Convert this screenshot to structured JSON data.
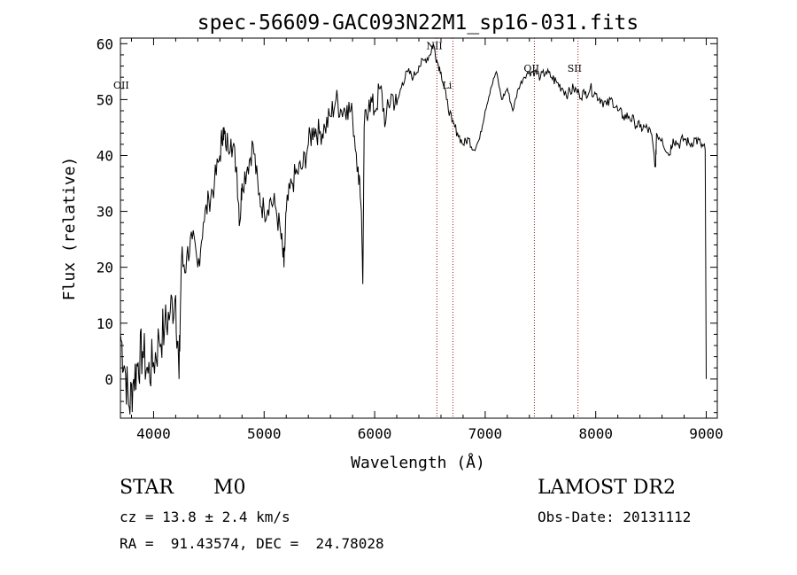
{
  "chart_data": {
    "type": "line",
    "title": "spec-56609-GAC093N22M1_sp16-031.fits",
    "xlabel": "Wavelength (Å)",
    "ylabel": "Flux (relative)",
    "xlim": [
      3700,
      9100
    ],
    "ylim": [
      -7,
      61
    ],
    "xticks": [
      "4000",
      "5000",
      "6000",
      "7000",
      "8000",
      "9000"
    ],
    "yticks": [
      "0",
      "10",
      "20",
      "30",
      "40",
      "50",
      "60"
    ],
    "grid": false,
    "color": "#000000",
    "line_color": "#8b1a1a",
    "series": [
      {
        "x": [
          3700,
          3740,
          3780,
          3820,
          3860,
          3900,
          3950,
          4000,
          4050,
          4100,
          4150,
          4200,
          4230,
          4250,
          4300,
          4350,
          4400,
          4450,
          4500,
          4550,
          4600,
          4630,
          4650,
          4700,
          4750,
          4780,
          4800,
          4850,
          4900,
          4950,
          5000,
          5050,
          5100,
          5150,
          5180,
          5200,
          5250,
          5300,
          5350,
          5400,
          5450,
          5500,
          5550,
          5600,
          5650,
          5700,
          5750,
          5800,
          5850,
          5880,
          5893,
          5905,
          5950,
          6000,
          6050,
          6100,
          6150,
          6200,
          6250,
          6300,
          6350,
          6400,
          6450,
          6500,
          6530,
          6563,
          6600,
          6650,
          6700,
          6750,
          6800,
          6850,
          6900,
          6950,
          7000,
          7050,
          7100,
          7150,
          7200,
          7250,
          7300,
          7350,
          7400,
          7450,
          7500,
          7550,
          7600,
          7650,
          7700,
          7750,
          7800,
          7850,
          7900,
          7950,
          8000,
          8050,
          8100,
          8150,
          8200,
          8250,
          8300,
          8350,
          8400,
          8450,
          8500,
          8542,
          8550,
          8600,
          8662,
          8700,
          8750,
          8800,
          8850,
          8900,
          8950,
          8990,
          9000
        ],
        "y": [
          8,
          2,
          -5,
          0,
          3,
          5,
          1,
          3,
          7,
          9,
          12,
          15,
          0,
          20,
          22,
          25,
          20,
          28,
          32,
          35,
          40,
          45,
          42,
          43,
          38,
          28,
          35,
          38,
          42,
          33,
          30,
          32,
          31,
          26,
          20,
          30,
          35,
          37,
          38,
          42,
          45,
          44,
          45,
          47,
          50,
          48,
          49,
          47,
          38,
          30,
          17,
          45,
          50,
          48,
          52,
          46,
          51,
          49,
          53,
          55,
          54,
          56,
          57,
          58,
          60,
          57,
          55,
          50,
          46,
          44,
          42,
          43,
          41,
          43,
          48,
          52,
          55,
          50,
          52,
          48,
          52,
          54,
          55,
          55,
          54,
          55,
          54,
          53,
          52,
          51,
          52,
          51,
          51,
          52,
          51,
          50,
          49,
          50,
          48,
          47,
          47,
          46,
          45,
          45,
          44,
          38,
          44,
          43,
          40,
          43,
          42,
          43,
          42,
          43,
          42,
          41,
          0
        ]
      }
    ],
    "lines": [
      {
        "label": "NII",
        "x": 6563,
        "label_y": 59
      },
      {
        "label": "Li",
        "x": 6708,
        "label_y": 52
      },
      {
        "label": "OII",
        "x": 7445,
        "label_y": 55
      },
      {
        "label": "SII",
        "x": 7840,
        "label_y": 55
      }
    ],
    "edge_label": {
      "label": "OII",
      "label_y": 52
    }
  },
  "info": {
    "class": "STAR",
    "subclass": "M0",
    "survey": "LAMOST DR2",
    "cz": "cz = 13.8 ± 2.4 km/s",
    "obs_date": "Obs-Date: 20131112",
    "radec": "RA =  91.43574, DEC =  24.78028"
  }
}
